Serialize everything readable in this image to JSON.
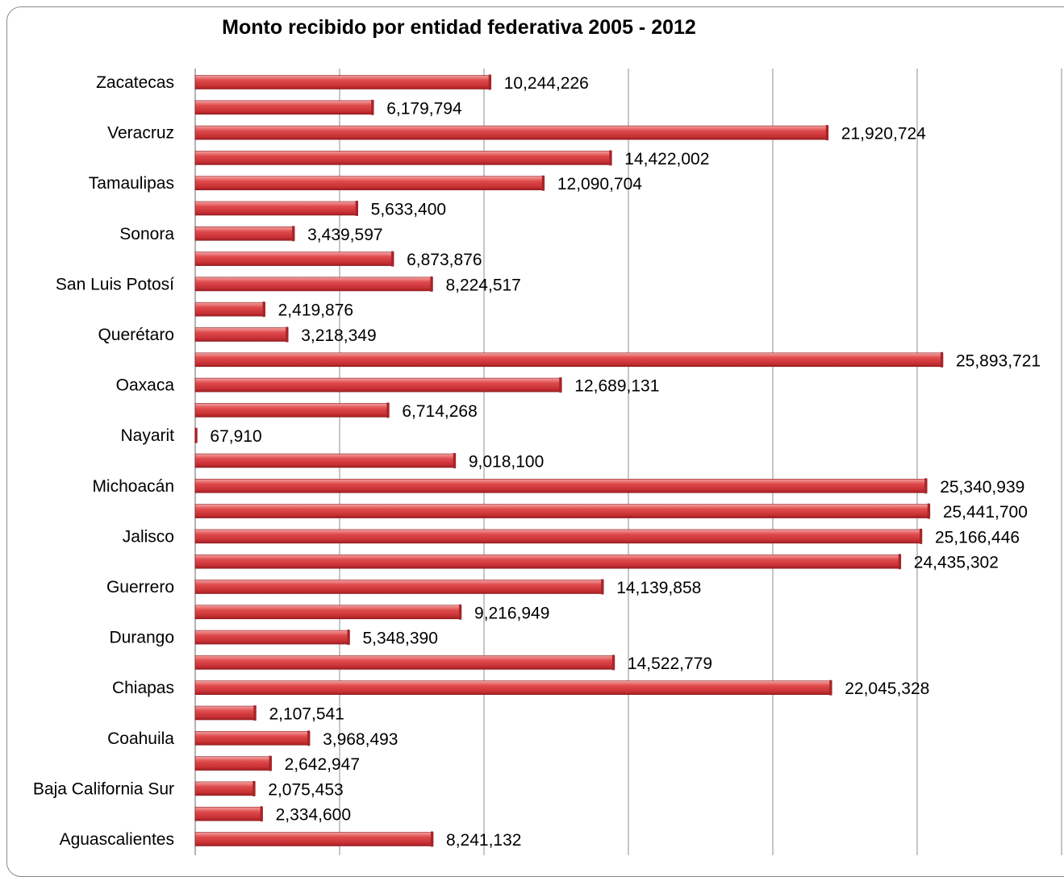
{
  "chart_data": {
    "type": "bar",
    "orientation": "horizontal",
    "title": "Monto recibido por entidad federativa 2005 - 2012",
    "xlabel": "",
    "ylabel": "",
    "xlim": [
      0,
      30000000
    ],
    "grid": true,
    "legend": "none",
    "bar_color": "#d9393c",
    "categories": [
      "Zacatecas",
      "",
      "Veracruz",
      "",
      "Tamaulipas",
      "",
      "Sonora",
      "",
      "San Luis Potosí",
      "",
      "Querétaro",
      "",
      "Oaxaca",
      "",
      "Nayarit",
      "",
      "Michoacán",
      "",
      "Jalisco",
      "",
      "Guerrero",
      "",
      "Durango",
      "",
      "Chiapas",
      "",
      "Coahuila",
      "",
      "Baja California Sur",
      "",
      "Aguascalientes"
    ],
    "values": [
      10244226,
      6179794,
      21920724,
      14422002,
      12090704,
      5633400,
      3439597,
      6873876,
      8224517,
      2419876,
      3218349,
      25893721,
      12689131,
      6714268,
      67910,
      9018100,
      25340939,
      25441700,
      25166446,
      24435302,
      14139858,
      9216949,
      5348390,
      14522779,
      22045328,
      2107541,
      3968493,
      2642947,
      2075453,
      2334600,
      8241132
    ],
    "value_labels": [
      "10,244,226",
      "6,179,794",
      "21,920,724",
      "14,422,002",
      "12,090,704",
      "5,633,400",
      "3,439,597",
      "6,873,876",
      "8,224,517",
      "2,419,876",
      "3,218,349",
      "25,893,721",
      "12,689,131",
      "6,714,268",
      "67,910",
      "9,018,100",
      "25,340,939",
      "25,441,700",
      "25,166,446",
      "24,435,302",
      "14,139,858",
      "9,216,949",
      "5,348,390",
      "14,522,779",
      "22,045,328",
      "2,107,541",
      "3,968,493",
      "2,642,947",
      "2,075,453",
      "2,334,600",
      "8,241,132"
    ]
  }
}
